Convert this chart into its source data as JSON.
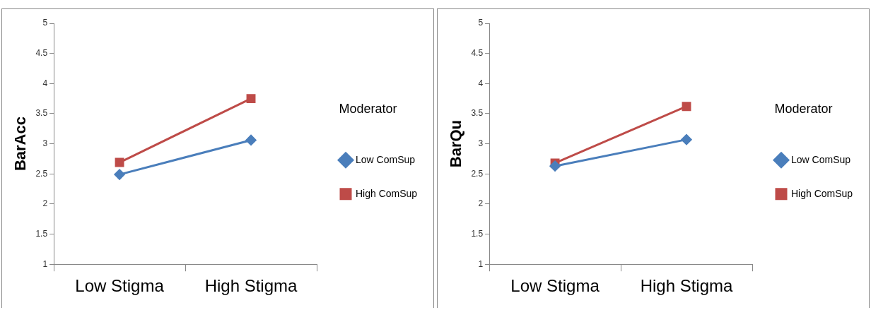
{
  "chart_data": [
    {
      "type": "line",
      "ylabel": "BarAcc",
      "legend_title": "Moderator",
      "categories": [
        "Low Stigma",
        "High Stigma"
      ],
      "ylim": [
        1,
        5
      ],
      "yticks": [
        1,
        1.5,
        2,
        2.5,
        3,
        3.5,
        4,
        4.5,
        5
      ],
      "grid": false,
      "legend": "right",
      "series": [
        {
          "name": "Low ComSup",
          "color": "#4a7ebb",
          "marker": "diamond",
          "values": [
            2.49,
            3.06
          ]
        },
        {
          "name": "High ComSup",
          "color": "#be4b48",
          "marker": "square",
          "values": [
            2.69,
            3.75
          ]
        }
      ]
    },
    {
      "type": "line",
      "ylabel": "BarQu",
      "legend_title": "Moderator",
      "categories": [
        "Low Stigma",
        "High Stigma"
      ],
      "ylim": [
        1,
        5
      ],
      "yticks": [
        1,
        1.5,
        2,
        2.5,
        3,
        3.5,
        4,
        4.5,
        5
      ],
      "grid": false,
      "legend": "right",
      "series": [
        {
          "name": "Low ComSup",
          "color": "#4a7ebb",
          "marker": "diamond",
          "values": [
            2.63,
            3.07
          ]
        },
        {
          "name": "High ComSup",
          "color": "#be4b48",
          "marker": "square",
          "values": [
            2.68,
            3.62
          ]
        }
      ]
    }
  ]
}
